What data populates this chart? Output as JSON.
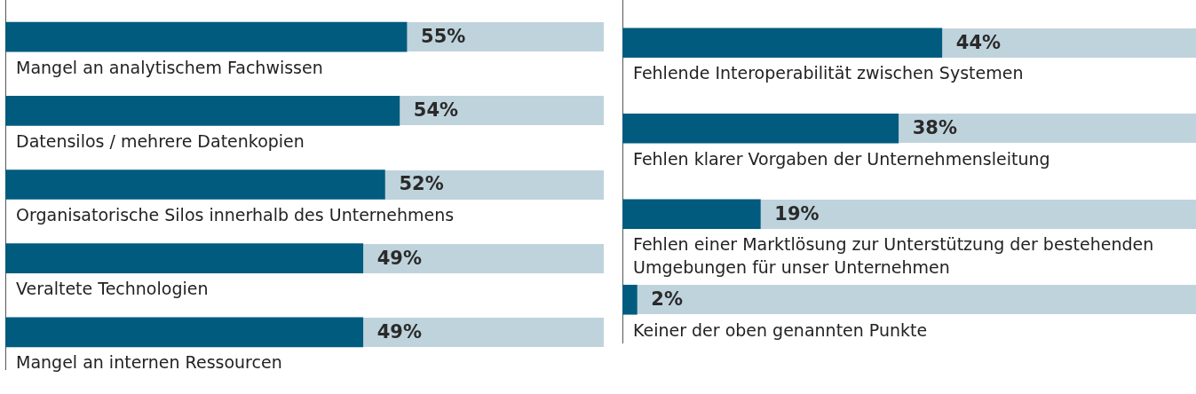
{
  "chart_data": [
    {
      "type": "bar",
      "orientation": "horizontal",
      "categories": [
        "Mangel an analytischem Fachwissen",
        "Datensilos / mehrere Datenkopien",
        "Organisatorische Silos innerhalb des Unternehmens",
        "Veraltete Technologien",
        "Mangel an internen Ressourcen"
      ],
      "values": [
        55,
        54,
        52,
        49,
        49
      ],
      "value_labels": [
        "55%",
        "54%",
        "52%",
        "49%",
        "49%"
      ],
      "color": "#005b7f",
      "xlim": [
        0,
        82
      ],
      "grid": false,
      "legend": false
    },
    {
      "type": "bar",
      "orientation": "horizontal",
      "categories": [
        "Fehlende Interoperabilität zwischen Systemen",
        "Fehlen klarer Vorgaben der Unternehmensleitung",
        "Fehlen einer Marktlösung zur Unterstützung der bestehenden Umgebungen für unser Unternehmen",
        "Keiner der oben genannten Punkte"
      ],
      "values": [
        44,
        38,
        19,
        2
      ],
      "value_labels": [
        "44%",
        "38%",
        "19%",
        "2%"
      ],
      "color": "#005b7f",
      "xlim": [
        0,
        79
      ],
      "grid": false,
      "legend": false
    }
  ]
}
